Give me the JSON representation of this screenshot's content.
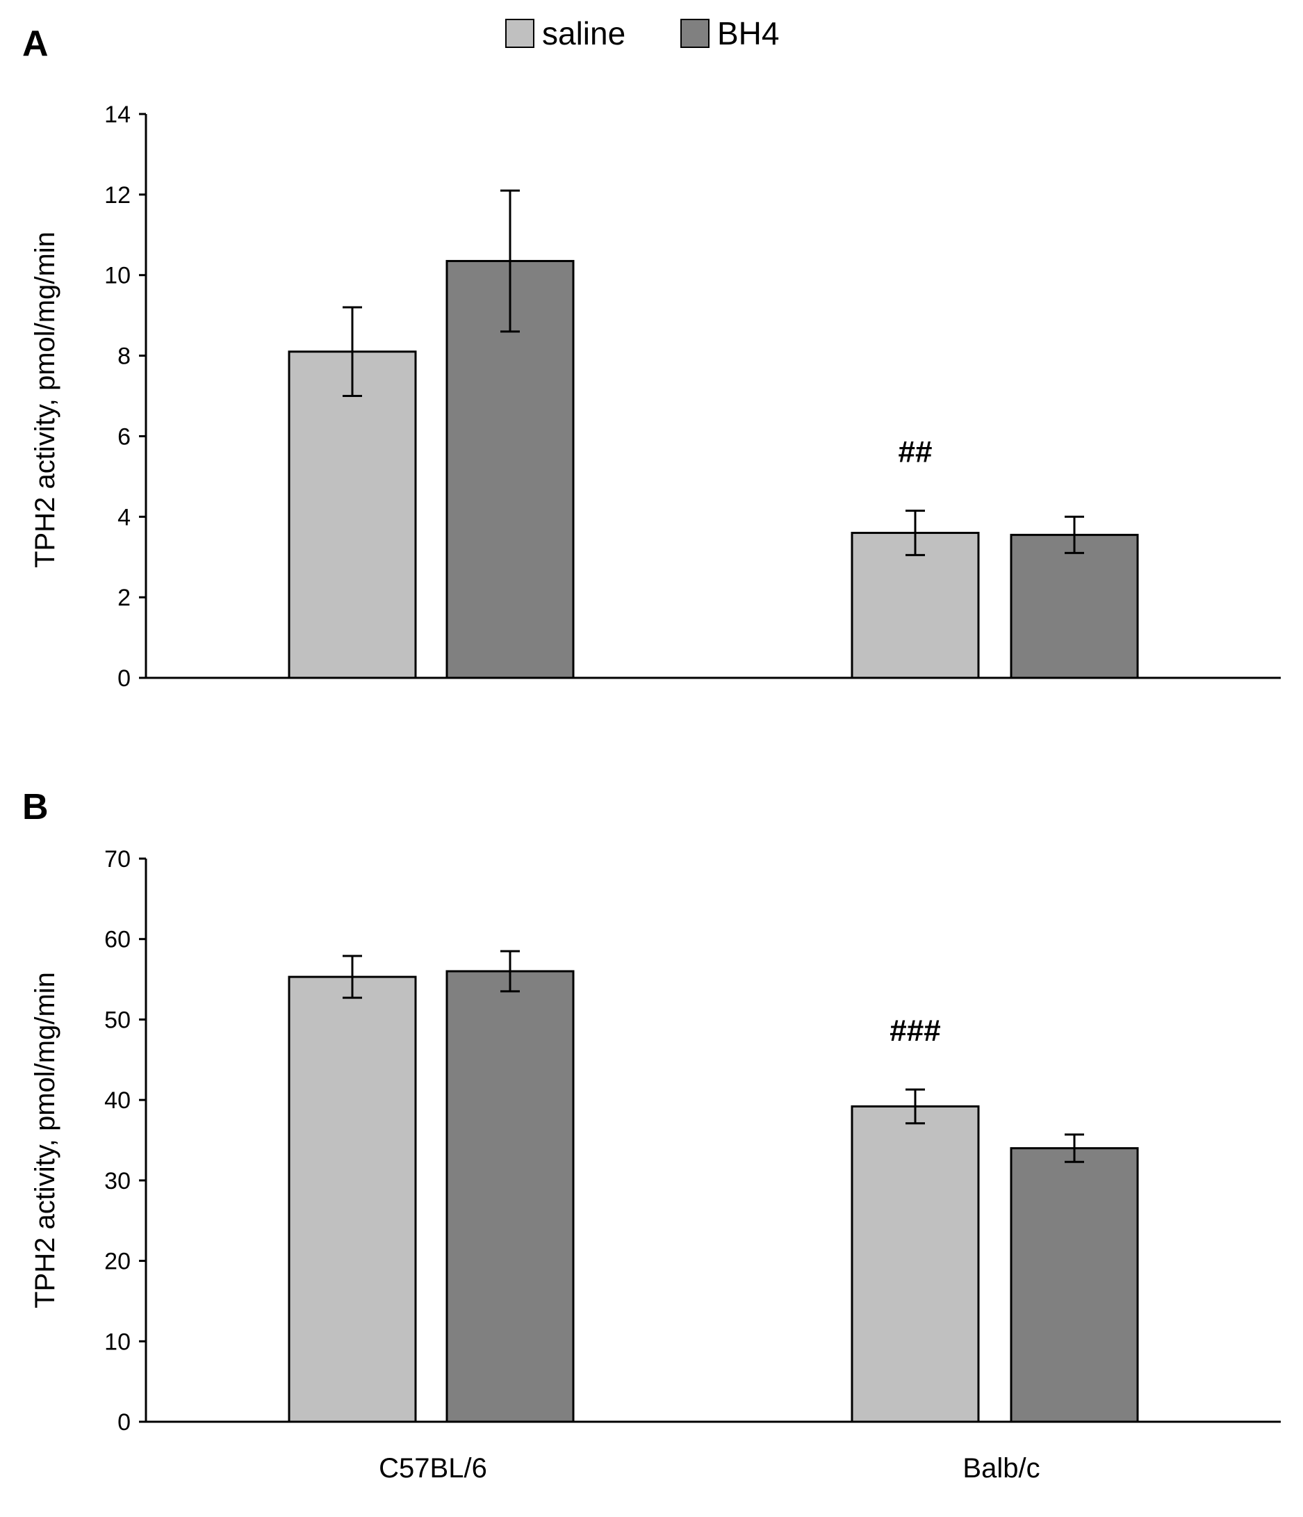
{
  "legend": [
    {
      "label": "saline",
      "color": "#c0c0c0"
    },
    {
      "label": "BH4",
      "color": "#808080"
    }
  ],
  "chart_data": [
    {
      "type": "bar",
      "panel": "A",
      "categories": [
        "C57BL/6",
        "Balb/c"
      ],
      "ylabel": "TPH2 activity, pmol/mg/min",
      "ylim": [
        0,
        14
      ],
      "yticks": [
        0,
        2,
        4,
        6,
        8,
        10,
        12,
        14
      ],
      "series": [
        {
          "name": "saline",
          "values": [
            8.1,
            3.6
          ],
          "errors": [
            1.1,
            0.55
          ]
        },
        {
          "name": "BH4",
          "values": [
            10.35,
            3.55
          ],
          "errors": [
            1.75,
            0.45
          ]
        }
      ],
      "annotations": [
        {
          "text": "##",
          "category": "Balb/c",
          "series": "saline"
        }
      ]
    },
    {
      "type": "bar",
      "panel": "B",
      "categories": [
        "C57BL/6",
        "Balb/c"
      ],
      "ylabel": "TPH2 activity, pmol/mg/min",
      "ylim": [
        0,
        70
      ],
      "yticks": [
        0,
        10,
        20,
        30,
        40,
        50,
        60,
        70
      ],
      "series": [
        {
          "name": "saline",
          "values": [
            55.3,
            39.2
          ],
          "errors": [
            2.6,
            2.1
          ]
        },
        {
          "name": "BH4",
          "values": [
            56.0,
            34.0
          ],
          "errors": [
            2.5,
            1.7
          ]
        }
      ],
      "annotations": [
        {
          "text": "###",
          "category": "Balb/c",
          "series": "saline"
        }
      ]
    }
  ]
}
